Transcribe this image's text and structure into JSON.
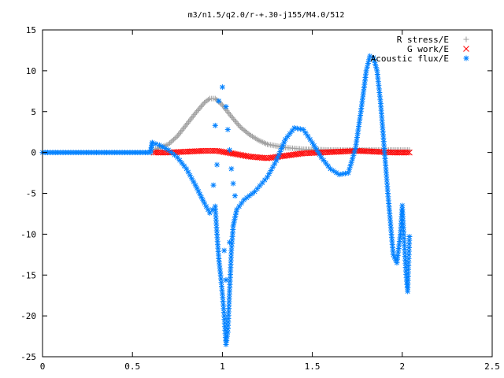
{
  "chart_data": {
    "type": "scatter",
    "title": "m3/n1.5/q2.0/r-+.30-j155/M4.0/512",
    "xlim": [
      0,
      2.5
    ],
    "ylim": [
      -25,
      15
    ],
    "x_ticks": [
      0,
      0.5,
      1,
      1.5,
      2,
      2.5
    ],
    "x_tick_labels": [
      "0",
      "0.5",
      "1",
      "1.5",
      "2",
      "2.5"
    ],
    "y_ticks": [
      -25,
      -20,
      -15,
      -10,
      -5,
      0,
      5,
      10,
      15
    ],
    "y_tick_labels": [
      "-25",
      "-20",
      "-15",
      "-10",
      "-5",
      "0",
      "5",
      "10",
      "15"
    ],
    "grid": false,
    "legend_position": "top-right",
    "series": [
      {
        "name": "R stress/E",
        "color": "#a0a0a0",
        "marker": "plus",
        "points": [
          [
            0.62,
            0.3
          ],
          [
            0.7,
            1.0
          ],
          [
            0.75,
            2.0
          ],
          [
            0.8,
            3.4
          ],
          [
            0.85,
            4.8
          ],
          [
            0.9,
            6.1
          ],
          [
            0.93,
            6.6
          ],
          [
            0.96,
            6.6
          ],
          [
            1.0,
            5.8
          ],
          [
            1.05,
            4.4
          ],
          [
            1.1,
            3.1
          ],
          [
            1.15,
            2.2
          ],
          [
            1.2,
            1.5
          ],
          [
            1.25,
            1.0
          ],
          [
            1.35,
            0.6
          ],
          [
            1.45,
            0.4
          ],
          [
            1.6,
            0.3
          ],
          [
            1.8,
            0.3
          ],
          [
            2.0,
            0.3
          ],
          [
            2.04,
            0.3
          ]
        ]
      },
      {
        "name": "G work/E",
        "color": "#ff0000",
        "marker": "cross",
        "points": [
          [
            0.62,
            0.0
          ],
          [
            0.7,
            0.0
          ],
          [
            0.8,
            0.1
          ],
          [
            0.9,
            0.2
          ],
          [
            0.97,
            0.2
          ],
          [
            1.05,
            -0.1
          ],
          [
            1.15,
            -0.5
          ],
          [
            1.25,
            -0.7
          ],
          [
            1.35,
            -0.4
          ],
          [
            1.45,
            -0.1
          ],
          [
            1.55,
            0.0
          ],
          [
            1.65,
            0.1
          ],
          [
            1.75,
            0.2
          ],
          [
            1.85,
            0.1
          ],
          [
            1.95,
            0.0
          ],
          [
            2.04,
            0.0
          ]
        ]
      },
      {
        "name": "Acoustic flux/E",
        "color": "#0080ff",
        "marker": "star",
        "points": [
          [
            0.0,
            0.0
          ],
          [
            0.1,
            0.0
          ],
          [
            0.2,
            0.0
          ],
          [
            0.3,
            0.0
          ],
          [
            0.4,
            0.0
          ],
          [
            0.5,
            0.0
          ],
          [
            0.6,
            0.0
          ],
          [
            0.61,
            1.2
          ],
          [
            0.65,
            0.9
          ],
          [
            0.7,
            0.3
          ],
          [
            0.75,
            -0.6
          ],
          [
            0.8,
            -2.0
          ],
          [
            0.85,
            -4.0
          ],
          [
            0.9,
            -6.2
          ],
          [
            0.93,
            -7.4
          ],
          [
            0.96,
            -6.6
          ],
          [
            0.97,
            -10.0
          ],
          [
            0.98,
            -13.0
          ],
          [
            0.99,
            -15.0
          ],
          [
            1.0,
            -17.3
          ],
          [
            1.01,
            -20.0
          ],
          [
            1.02,
            -23.5
          ],
          [
            1.03,
            -22.0
          ],
          [
            1.04,
            -17.0
          ],
          [
            1.05,
            -12.0
          ],
          [
            1.06,
            -9.0
          ],
          [
            1.08,
            -7.0
          ],
          [
            1.12,
            -5.8
          ],
          [
            1.18,
            -4.8
          ],
          [
            1.25,
            -3.0
          ],
          [
            1.3,
            -1.0
          ],
          [
            1.35,
            1.6
          ],
          [
            1.4,
            3.0
          ],
          [
            1.45,
            2.8
          ],
          [
            1.5,
            1.2
          ],
          [
            1.55,
            -0.6
          ],
          [
            1.6,
            -2.0
          ],
          [
            1.65,
            -2.7
          ],
          [
            1.7,
            -2.5
          ],
          [
            1.74,
            0.5
          ],
          [
            1.77,
            5.0
          ],
          [
            1.8,
            10.0
          ],
          [
            1.82,
            11.8
          ],
          [
            1.84,
            11.6
          ],
          [
            1.86,
            10.0
          ],
          [
            1.88,
            6.0
          ],
          [
            1.9,
            0.5
          ],
          [
            1.92,
            -5.0
          ],
          [
            1.94,
            -10.0
          ],
          [
            1.95,
            -12.5
          ],
          [
            1.97,
            -13.5
          ],
          [
            1.99,
            -10.0
          ],
          [
            2.0,
            -6.5
          ],
          [
            2.01,
            -10.5
          ],
          [
            2.02,
            -14.5
          ],
          [
            2.03,
            -17.0
          ],
          [
            2.04,
            -10.3
          ],
          [
            0.96,
            3.3
          ],
          [
            0.98,
            6.3
          ],
          [
            1.0,
            8.0
          ],
          [
            1.02,
            5.6
          ],
          [
            1.03,
            2.8
          ],
          [
            1.04,
            0.3
          ],
          [
            1.05,
            -2.0
          ],
          [
            1.06,
            -3.8
          ],
          [
            1.07,
            -5.3
          ],
          [
            0.95,
            -4.0
          ],
          [
            0.97,
            -1.5
          ],
          [
            1.01,
            -12.0
          ],
          [
            1.02,
            -15.6
          ],
          [
            1.04,
            -11.0
          ]
        ]
      }
    ]
  }
}
